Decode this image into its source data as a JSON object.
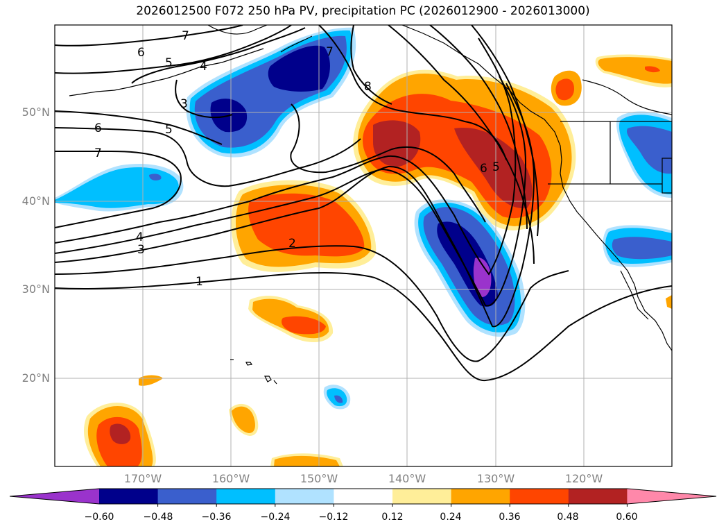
{
  "title": "2026012500 F072 250 hPa PV, precipitation PC (2026012900 - 2026013000)",
  "lat_labels": [
    "50°N",
    "40°N",
    "30°N",
    "20°N"
  ],
  "lon_labels": [
    "170°W",
    "160°W",
    "150°W",
    "140°W",
    "130°W",
    "120°W"
  ],
  "colorbar": {
    "ticks": [
      "−0.60",
      "−0.48",
      "−0.36",
      "−0.24",
      "−0.12",
      "0.12",
      "0.24",
      "0.36",
      "0.48",
      "0.60"
    ],
    "colors": [
      "#9a33cc",
      "#00008b",
      "#3a5fcd",
      "#00bfff",
      "#b0e2ff",
      "#ffffff",
      "#ffee99",
      "#ffa500",
      "#ff4500",
      "#b22222",
      "#ff88aa"
    ]
  },
  "contour_labels": [
    "7",
    "6",
    "5",
    "4",
    "3",
    "6",
    "5",
    "7",
    "8",
    "7",
    "4",
    "3",
    "2",
    "1",
    "6",
    "5"
  ],
  "fill_colors": {
    "yellow": "#ffee99",
    "orange": "#ffa500",
    "red": "#ff4500",
    "darkred": "#b22222",
    "lightblue": "#b0e2ff",
    "cyan": "#00bfff",
    "blue": "#3a5fcd",
    "navy": "#00008b",
    "purple": "#9a33cc"
  }
}
